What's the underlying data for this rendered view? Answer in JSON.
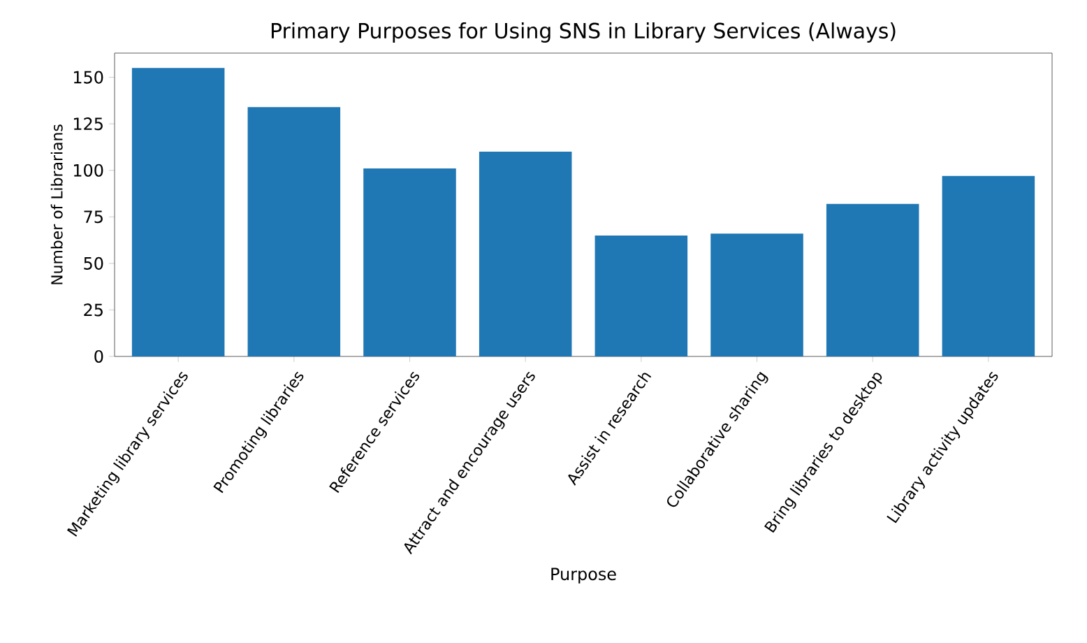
{
  "chart_data": {
    "type": "bar",
    "title": "Primary Purposes for Using SNS in Library Services (Always)",
    "xlabel": "Purpose",
    "ylabel": "Number of Librarians",
    "categories": [
      "Marketing library services",
      "Promoting libraries",
      "Reference services",
      "Attract and encourage users",
      "Assist in research",
      "Collaborative sharing",
      "Bring libraries to desktop",
      "Library activity updates"
    ],
    "values": [
      155,
      134,
      101,
      110,
      65,
      66,
      82,
      97
    ],
    "color": "#1f77b4",
    "ylim": [
      0,
      163
    ],
    "yticks": [
      0,
      25,
      50,
      75,
      100,
      125,
      150
    ],
    "grid": false
  }
}
